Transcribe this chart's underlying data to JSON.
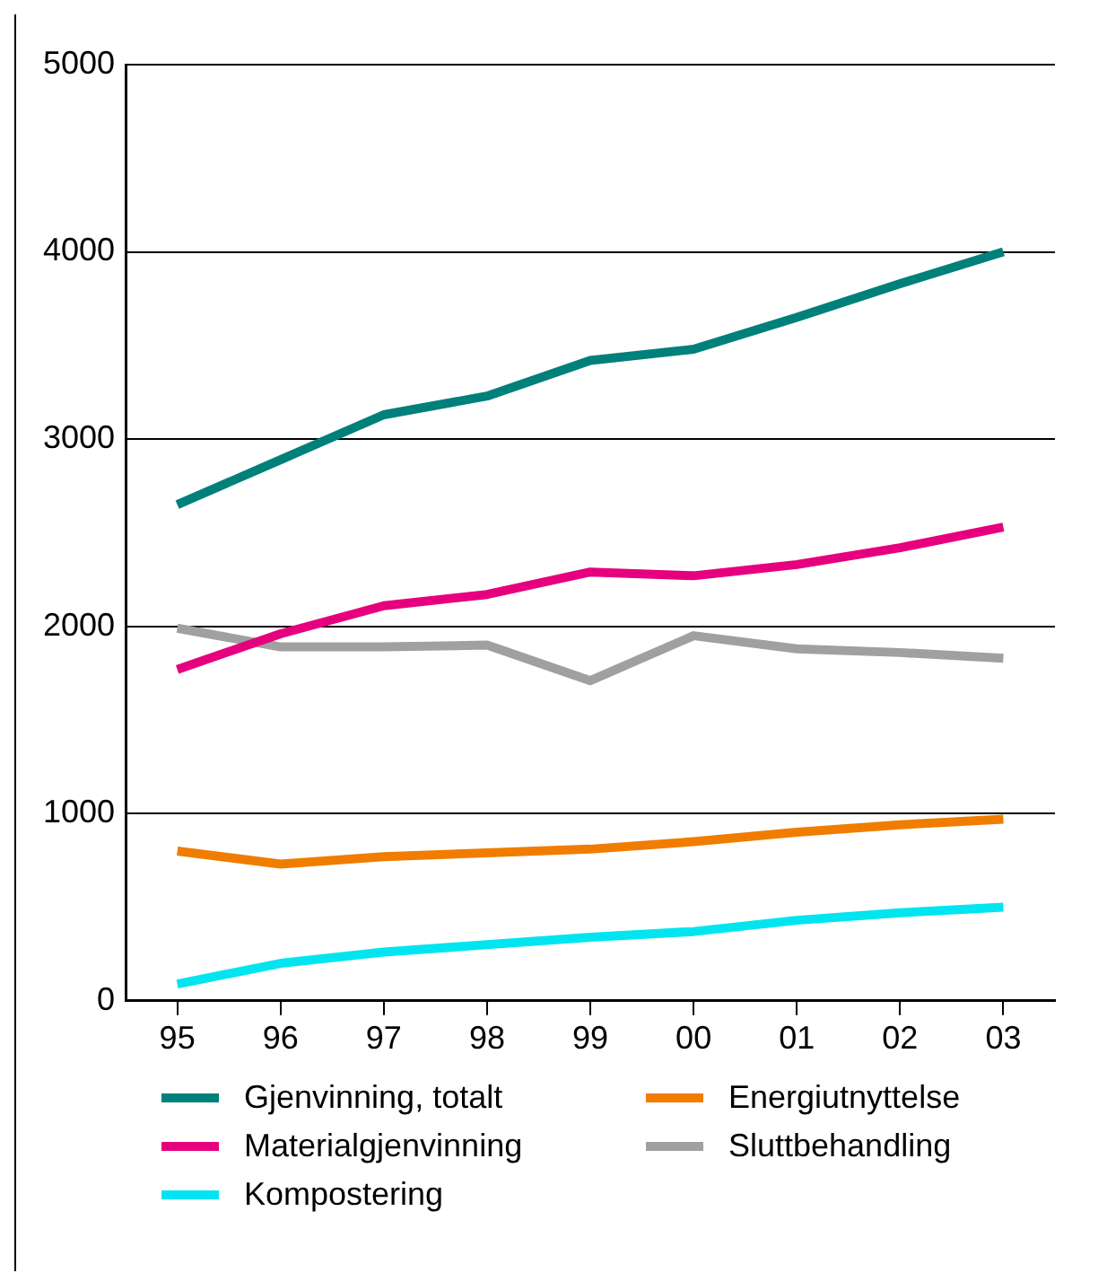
{
  "chart_data": {
    "type": "line",
    "categories": [
      "95",
      "96",
      "97",
      "98",
      "99",
      "00",
      "01",
      "02",
      "03"
    ],
    "series": [
      {
        "name": "Gjenvinning, totalt",
        "color": "#00807a",
        "values": [
          2650,
          2890,
          3130,
          3230,
          3420,
          3480,
          3650,
          3830,
          4000
        ]
      },
      {
        "name": "Energiutnyttelse",
        "color": "#f07d00",
        "values": [
          800,
          730,
          770,
          790,
          810,
          850,
          900,
          940,
          970
        ]
      },
      {
        "name": "Materialgjenvinning",
        "color": "#e6007e",
        "values": [
          1770,
          1960,
          2110,
          2170,
          2290,
          2270,
          2330,
          2420,
          2530
        ]
      },
      {
        "name": "Sluttbehandling",
        "color": "#a0a0a0",
        "values": [
          1990,
          1890,
          1890,
          1900,
          1710,
          1950,
          1880,
          1860,
          1830
        ]
      },
      {
        "name": "Kompostering",
        "color": "#00e5f0",
        "values": [
          90,
          200,
          260,
          300,
          340,
          370,
          430,
          470,
          500
        ]
      }
    ],
    "ylim": [
      0,
      5000
    ],
    "yticks": [
      0,
      1000,
      2000,
      3000,
      4000,
      5000
    ],
    "grid": "y",
    "legend": "bottom",
    "marker": "none",
    "line_style": "solid"
  }
}
